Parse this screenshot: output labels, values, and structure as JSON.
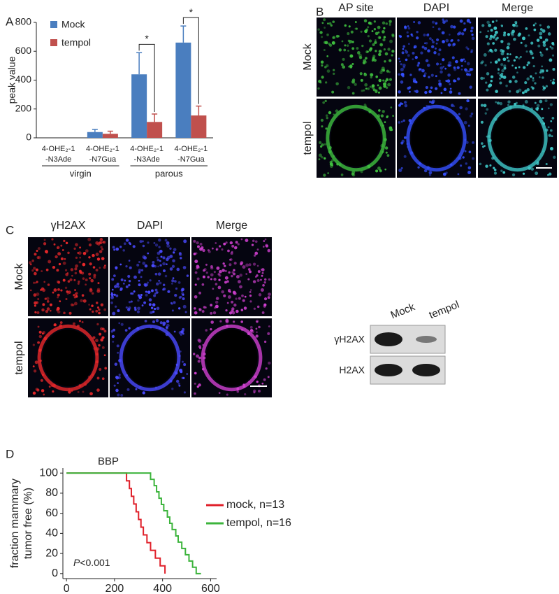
{
  "panel_labels": [
    "A",
    "B",
    "C",
    "D"
  ],
  "chart_data": [
    {
      "type": "bar",
      "ylabel": "peak value",
      "categories": [
        [
          "4-OHE₂-1",
          "-N3Ade"
        ],
        [
          "4-OHE₂-1",
          "-N7Gua"
        ],
        [
          "4-OHE₂-1",
          "-N3Ade"
        ],
        [
          "4-OHE₂-1",
          "-N7Gua"
        ]
      ],
      "groups": [
        "virgin",
        "parous"
      ],
      "series": [
        {
          "name": "Mock",
          "color": "#4a7ebf",
          "values": [
            0,
            40,
            440,
            660
          ],
          "errors": [
            0,
            18,
            150,
            115
          ]
        },
        {
          "name": "tempol",
          "color": "#c0504d",
          "values": [
            0,
            28,
            110,
            155
          ],
          "errors": [
            0,
            18,
            55,
            65
          ]
        }
      ],
      "annotations": [
        {
          "text": "*",
          "category": 2
        },
        {
          "text": "*",
          "category": 3
        }
      ],
      "ylim": [
        0,
        800
      ],
      "yticks": [
        0,
        200,
        400,
        600,
        800
      ]
    },
    {
      "type": "line",
      "title": "BBP",
      "ylabel": [
        "fraction mammary",
        "tumor free (%)"
      ],
      "p_label": [
        "P",
        "<0.001"
      ],
      "xlim": [
        -15,
        625
      ],
      "xticks": [
        0,
        200,
        400,
        600
      ],
      "ylim": [
        -5,
        105
      ],
      "yticks": [
        0,
        20,
        40,
        60,
        80,
        100
      ],
      "series": [
        {
          "name": "mock, n=13",
          "color": "#e0202a",
          "x": [
            0,
            250,
            250,
            262,
            262,
            270,
            270,
            280,
            280,
            290,
            290,
            300,
            300,
            310,
            310,
            320,
            320,
            335,
            335,
            350,
            350,
            370,
            370,
            390,
            390,
            410,
            410
          ],
          "values": [
            100,
            100,
            92.3,
            92.3,
            84.6,
            84.6,
            76.9,
            76.9,
            69.2,
            69.2,
            61.5,
            61.5,
            53.8,
            53.8,
            46.2,
            46.2,
            38.5,
            38.5,
            30.8,
            30.8,
            23.1,
            23.1,
            15.4,
            15.4,
            7.7,
            7.7,
            0
          ]
        },
        {
          "name": "tempol, n=16",
          "color": "#3cb43c",
          "x": [
            0,
            350,
            350,
            365,
            365,
            375,
            375,
            385,
            385,
            395,
            395,
            405,
            405,
            420,
            420,
            430,
            430,
            440,
            440,
            455,
            455,
            465,
            465,
            480,
            480,
            495,
            495,
            510,
            510,
            525,
            525,
            540,
            540,
            560
          ],
          "values": [
            100,
            100,
            93.8,
            93.8,
            87.5,
            87.5,
            81.3,
            81.3,
            75,
            75,
            68.8,
            68.8,
            62.5,
            62.5,
            56.3,
            56.3,
            50,
            50,
            43.8,
            43.8,
            37.5,
            37.5,
            31.3,
            31.3,
            25,
            25,
            18.8,
            18.8,
            12.5,
            12.5,
            6.3,
            6.3,
            0,
            0
          ]
        }
      ]
    }
  ],
  "panel_b": {
    "columns": [
      "AP site",
      "DAPI",
      "Merge"
    ],
    "rows": [
      "Mock",
      "tempol"
    ]
  },
  "panel_c": {
    "columns": [
      "γH2AX",
      "DAPI",
      "Merge"
    ],
    "rows": [
      "Mock",
      "tempol"
    ]
  },
  "blot": {
    "columns": [
      "Mock",
      "tempol"
    ],
    "rows": [
      "γH2AX",
      "H2AX"
    ]
  }
}
